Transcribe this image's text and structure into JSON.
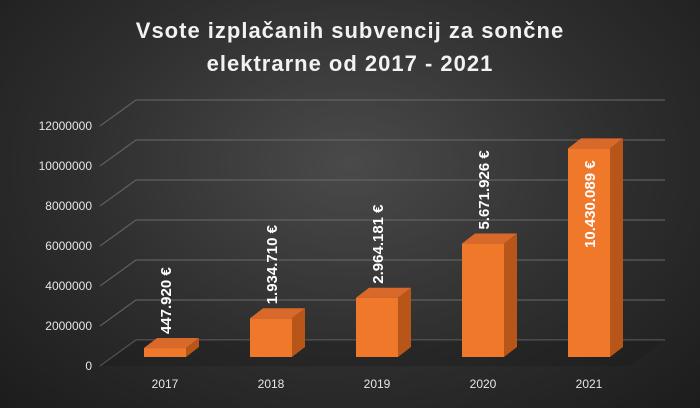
{
  "chart_data": {
    "type": "bar",
    "title_lines": [
      "Vsote izplačanih subvencij za sončne",
      "elektrarne od 2017 - 2021"
    ],
    "categories": [
      "2017",
      "2018",
      "2019",
      "2020",
      "2021"
    ],
    "values": [
      447920,
      1934710,
      2964181,
      5671926,
      10430089
    ],
    "data_labels": [
      "447.920 €",
      "1.934.710 €",
      "2.964.181 €",
      "5.671.926 €",
      "10.430.089 €"
    ],
    "yticks": [
      "0",
      "2000000",
      "4000000",
      "6000000",
      "8000000",
      "10000000",
      "12000000"
    ],
    "ylim": [
      0,
      12000000
    ],
    "grid": true,
    "bar_color": "#f0782a",
    "xlabel": "",
    "ylabel": ""
  }
}
